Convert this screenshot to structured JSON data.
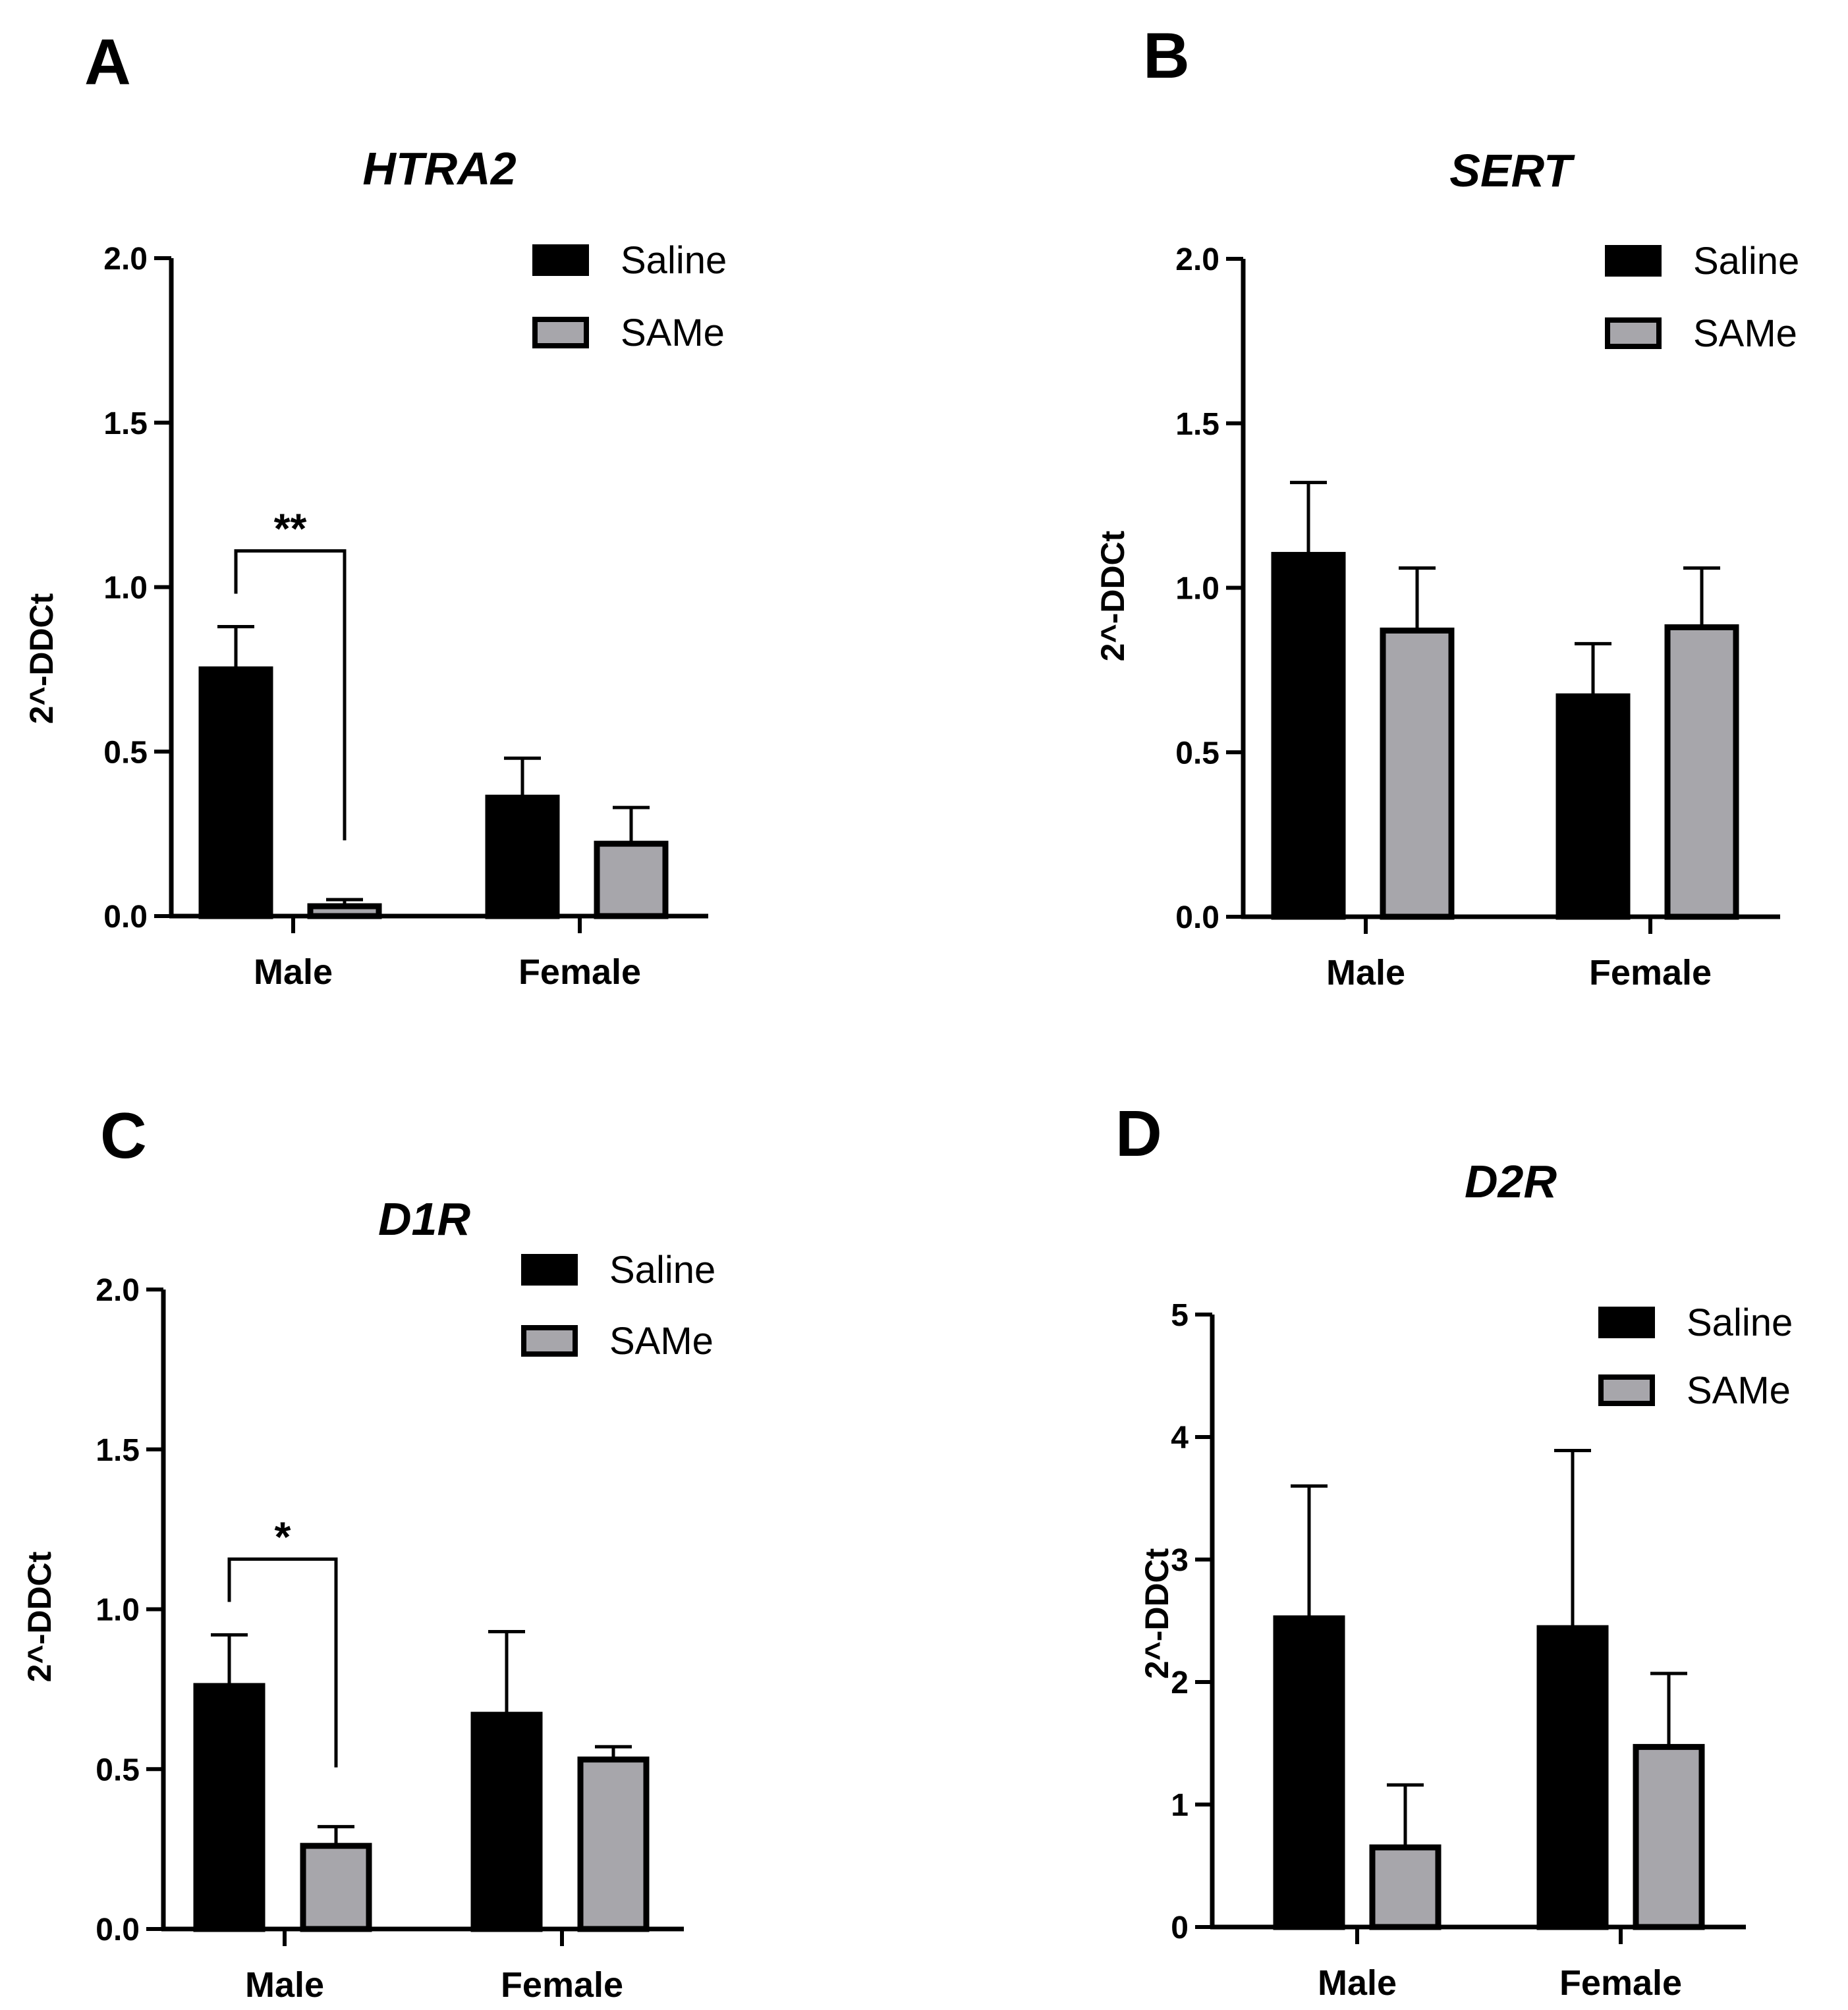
{
  "colors": {
    "saline": "#000000",
    "same": "#a7a6ab",
    "stroke": "#000000"
  },
  "chart_data": [
    {
      "panel": "A",
      "type": "bar",
      "title": "HTRA2",
      "ylabel": "2^-DDCt",
      "xlabel": "",
      "categories": [
        "Male",
        "Female"
      ],
      "ylim": [
        0,
        2.0
      ],
      "yticks": [
        0.0,
        0.5,
        1.0,
        1.5,
        2.0
      ],
      "tick_labels": [
        "0.0",
        "0.5",
        "1.0",
        "1.5",
        "2.0"
      ],
      "legend_position": "top-right",
      "series": [
        {
          "name": "Saline",
          "values": [
            0.75,
            0.36
          ],
          "errors": [
            0.13,
            0.12
          ]
        },
        {
          "name": "SAMe",
          "values": [
            0.03,
            0.22
          ],
          "errors": [
            0.02,
            0.11
          ]
        }
      ],
      "annotations": [
        {
          "text": "**",
          "category": "Male",
          "from": "Saline",
          "to": "SAMe"
        }
      ]
    },
    {
      "panel": "B",
      "type": "bar",
      "title": "SERT",
      "ylabel": "2^-DDCt",
      "xlabel": "",
      "categories": [
        "Male",
        "Female"
      ],
      "ylim": [
        0,
        2.0
      ],
      "yticks": [
        0.0,
        0.5,
        1.0,
        1.5,
        2.0
      ],
      "tick_labels": [
        "0.0",
        "0.5",
        "1.0",
        "1.5",
        "2.0"
      ],
      "legend_position": "top-right",
      "series": [
        {
          "name": "Saline",
          "values": [
            1.1,
            0.67
          ],
          "errors": [
            0.22,
            0.16
          ]
        },
        {
          "name": "SAMe",
          "values": [
            0.87,
            0.88
          ],
          "errors": [
            0.19,
            0.18
          ]
        }
      ],
      "annotations": []
    },
    {
      "panel": "C",
      "type": "bar",
      "title": "D1R",
      "ylabel": "2^-DDCt",
      "xlabel": "",
      "categories": [
        "Male",
        "Female"
      ],
      "ylim": [
        0,
        2.0
      ],
      "yticks": [
        0.0,
        0.5,
        1.0,
        1.5,
        2.0
      ],
      "tick_labels": [
        "0.0",
        "0.5",
        "1.0",
        "1.5",
        "2.0"
      ],
      "legend_position": "top-right",
      "series": [
        {
          "name": "Saline",
          "values": [
            0.76,
            0.67
          ],
          "errors": [
            0.16,
            0.26
          ]
        },
        {
          "name": "SAMe",
          "values": [
            0.26,
            0.53
          ],
          "errors": [
            0.06,
            0.04
          ]
        }
      ],
      "annotations": [
        {
          "text": "*",
          "category": "Male",
          "from": "Saline",
          "to": "SAMe"
        }
      ]
    },
    {
      "panel": "D",
      "type": "bar",
      "title": "D2R",
      "ylabel": "2^-DDCt",
      "xlabel": "",
      "categories": [
        "Male",
        "Female"
      ],
      "ylim": [
        0,
        5
      ],
      "yticks": [
        0,
        1,
        2,
        3,
        4,
        5
      ],
      "tick_labels": [
        "0",
        "1",
        "2",
        "3",
        "4",
        "5"
      ],
      "legend_position": "top-right",
      "series": [
        {
          "name": "Saline",
          "values": [
            2.52,
            2.44
          ],
          "errors": [
            1.08,
            1.45
          ]
        },
        {
          "name": "SAMe",
          "values": [
            0.65,
            1.47
          ],
          "errors": [
            0.51,
            0.6
          ]
        }
      ],
      "annotations": []
    }
  ]
}
